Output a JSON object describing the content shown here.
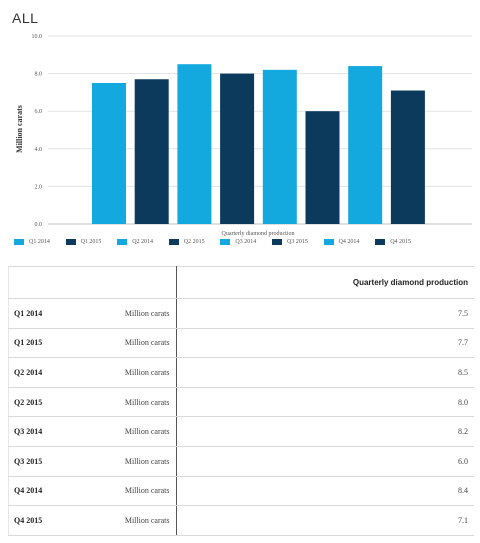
{
  "page": {
    "title": "ALL"
  },
  "chart_data": {
    "type": "bar",
    "categories": [
      "Q1 2014",
      "Q1 2015",
      "Q2 2014",
      "Q2 2015",
      "Q3 2014",
      "Q3 2015",
      "Q4 2014",
      "Q4 2015"
    ],
    "values": [
      7.5,
      7.7,
      8.5,
      8.0,
      8.2,
      6.0,
      8.4,
      7.1
    ],
    "colors": [
      "#13a9de",
      "#0b3a5c",
      "#13a9de",
      "#0b3a5c",
      "#13a9de",
      "#0b3a5c",
      "#13a9de",
      "#0b3a5c"
    ],
    "xlabel": "Quarterly diamond production",
    "ylabel": "Million carats",
    "ylim": [
      0,
      10
    ],
    "yticks": [
      "0.0",
      "2.0",
      "4.0",
      "6.0",
      "8.0",
      "10.0"
    ],
    "grid": true,
    "legend_position": "bottom"
  },
  "legend": [
    {
      "label": "Q1 2014",
      "color": "#13a9de"
    },
    {
      "label": "Q1 2015",
      "color": "#0b3a5c"
    },
    {
      "label": "Q2 2014",
      "color": "#13a9de"
    },
    {
      "label": "Q2 2015",
      "color": "#0b3a5c"
    },
    {
      "label": "Q3 2014",
      "color": "#13a9de"
    },
    {
      "label": "Q3 2015",
      "color": "#0b3a5c"
    },
    {
      "label": "Q4 2014",
      "color": "#13a9de"
    },
    {
      "label": "Q4 2015",
      "color": "#0b3a5c"
    }
  ],
  "table": {
    "header": "Quarterly diamond production",
    "rows": [
      {
        "category": "Q1 2014",
        "unit": "Million carats",
        "value": "7.5"
      },
      {
        "category": "Q1 2015",
        "unit": "Million carats",
        "value": "7.7"
      },
      {
        "category": "Q2 2014",
        "unit": "Million carats",
        "value": "8.5"
      },
      {
        "category": "Q2 2015",
        "unit": "Million carats",
        "value": "8.0"
      },
      {
        "category": "Q3 2014",
        "unit": "Million carats",
        "value": "8.2"
      },
      {
        "category": "Q3 2015",
        "unit": "Million carats",
        "value": "6.0"
      },
      {
        "category": "Q4 2014",
        "unit": "Million carats",
        "value": "8.4"
      },
      {
        "category": "Q4 2015",
        "unit": "Million carats",
        "value": "7.1"
      }
    ]
  }
}
